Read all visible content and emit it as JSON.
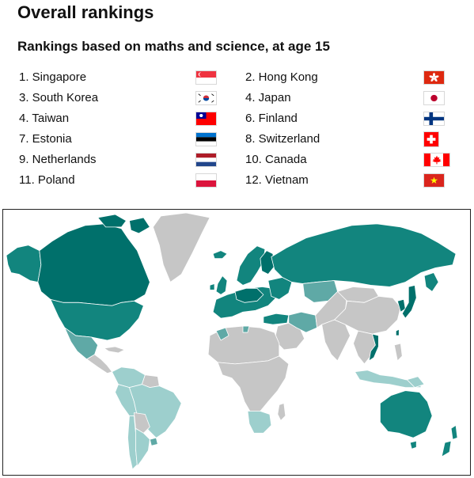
{
  "header": {
    "title": "Overall rankings",
    "subtitle": "Rankings based on maths and science, at age 15"
  },
  "rankings": [
    {
      "label": "1. Singapore",
      "flag_icon": "singapore-flag-icon"
    },
    {
      "label": "2. Hong Kong",
      "flag_icon": "hong-kong-flag-icon"
    },
    {
      "label": "3. South Korea",
      "flag_icon": "south-korea-flag-icon"
    },
    {
      "label": "4. Japan",
      "flag_icon": "japan-flag-icon"
    },
    {
      "label": "4. Taiwan",
      "flag_icon": "taiwan-flag-icon"
    },
    {
      "label": "6. Finland",
      "flag_icon": "finland-flag-icon"
    },
    {
      "label": "7. Estonia",
      "flag_icon": "estonia-flag-icon"
    },
    {
      "label": "8. Switzerland",
      "flag_icon": "switzerland-flag-icon"
    },
    {
      "label": "9. Netherlands",
      "flag_icon": "netherlands-flag-icon"
    },
    {
      "label": "10. Canada",
      "flag_icon": "canada-flag-icon"
    },
    {
      "label": "11. Poland",
      "flag_icon": "poland-flag-icon"
    },
    {
      "label": "12. Vietnam",
      "flag_icon": "vietnam-flag-icon"
    }
  ],
  "map": {
    "colors": {
      "top_rank": "#00706b",
      "high_rank": "#12857e",
      "mid_rank": "#5fa9a6",
      "low_rank": "#9dcfcd",
      "not_ranked": "#c6c6c6",
      "border": "#ffffff"
    }
  }
}
